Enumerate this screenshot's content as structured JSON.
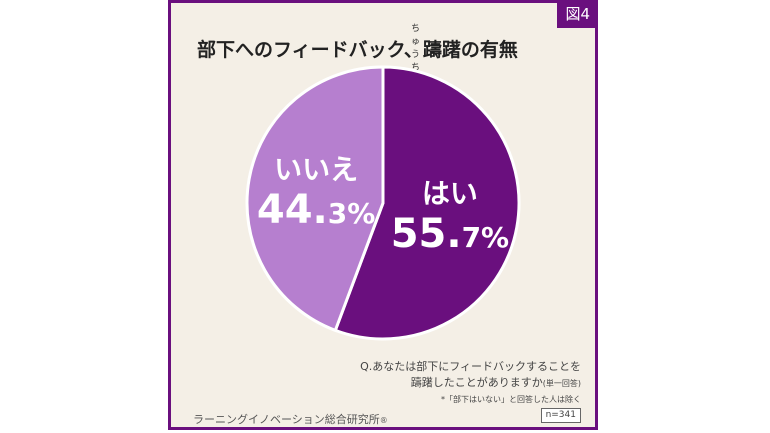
{
  "figure_label": "図4",
  "title": "部下へのフィードバック、躊躇の有無",
  "title_ruby": "ちゅうちょ",
  "question": {
    "line1": "Q.あなたは部下にフィードバックすることを",
    "line2": "躊躇したことがありますか",
    "suffix": "(単一回答)"
  },
  "note": "*「部下はいない」と回答した人は除く",
  "source": "ラーニングイノベーション総合研究所",
  "source_mark": "®",
  "sample_size": "n=341",
  "colors": {
    "yes": "#6a0f7e",
    "no": "#b67fcf",
    "frame": "#6a0f7e",
    "background": "#f4efe6"
  },
  "chart_data": {
    "type": "pie",
    "slices": [
      {
        "label": "はい",
        "value": 55.7,
        "int": "55.",
        "dec": "7",
        "unit": "%",
        "color": "#6a0f7e"
      },
      {
        "label": "いいえ",
        "value": 44.3,
        "int": "44.",
        "dec": "3",
        "unit": "%",
        "color": "#b67fcf"
      }
    ]
  }
}
